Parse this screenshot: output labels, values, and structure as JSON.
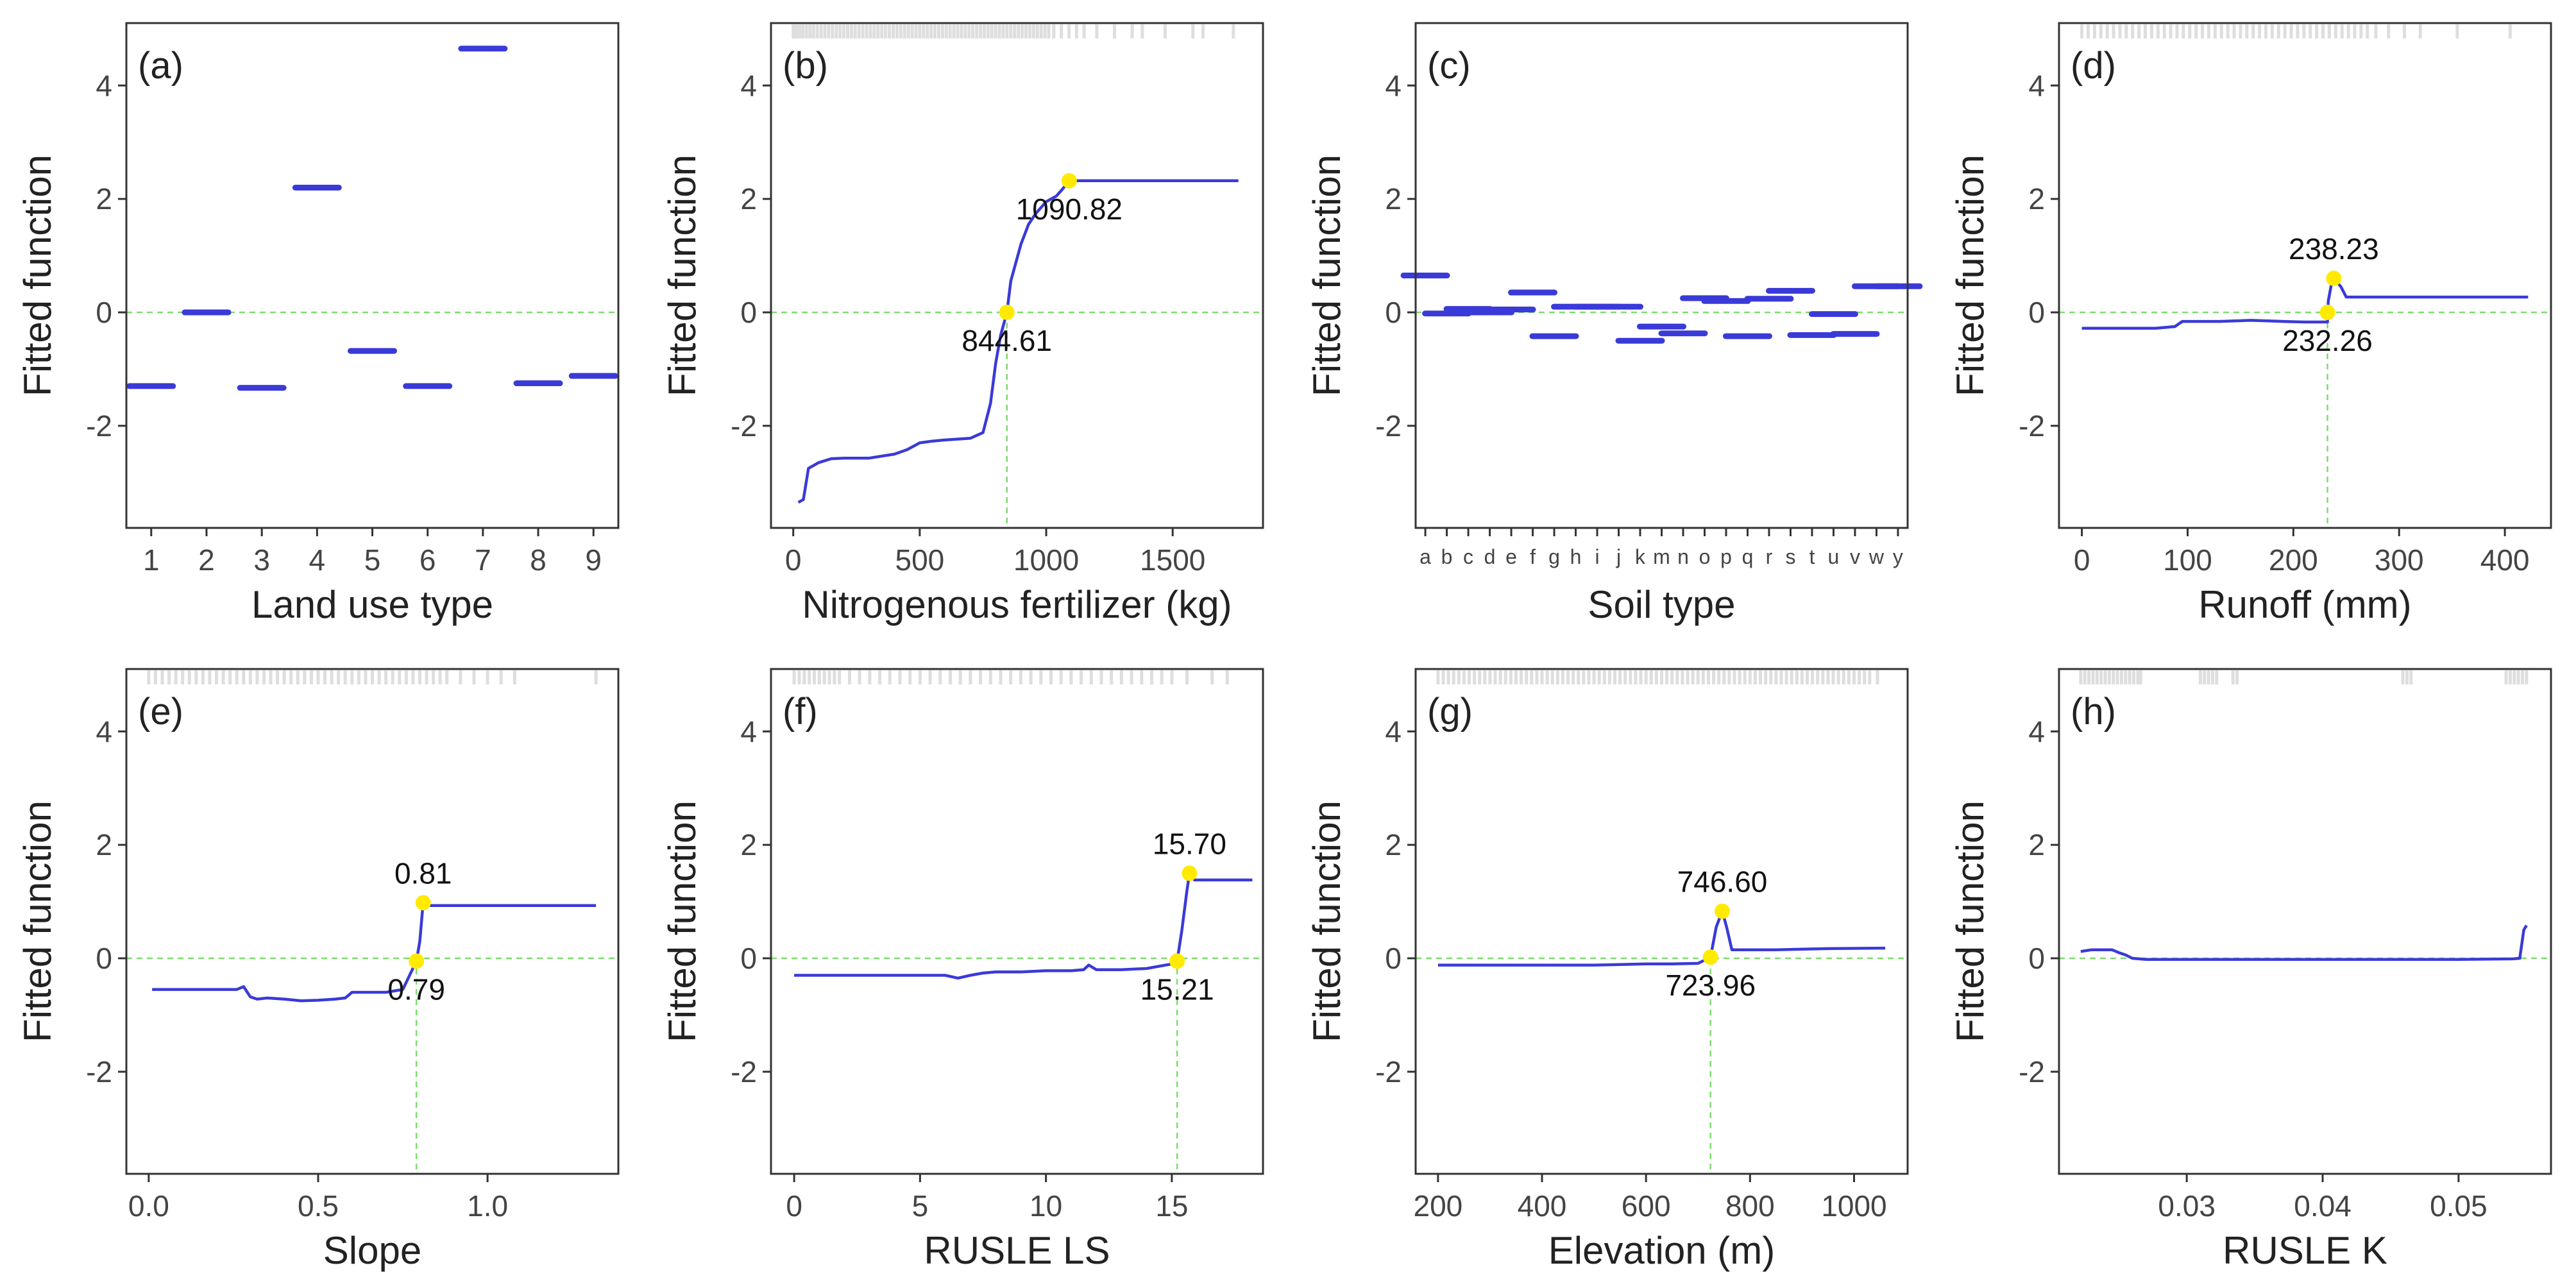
{
  "figure": {
    "ylabel": "Fitted function",
    "colors": {
      "line": "#3a3ad8",
      "highlight": "#ffea00",
      "guide": "#7ddc6e",
      "rug": "#dedede",
      "axis": "#333333",
      "text": "#222222"
    }
  },
  "chart_data": [
    {
      "panel": "(a)",
      "type": "step",
      "xlabel": "Land use type",
      "ylabel": "Fitted function",
      "x_scale": "categorical",
      "categories": [
        "1",
        "2",
        "3",
        "4",
        "5",
        "6",
        "7",
        "8",
        "9"
      ],
      "values": [
        -1.3,
        0.0,
        -1.33,
        2.2,
        -0.68,
        -1.3,
        4.65,
        -1.25,
        -1.12
      ],
      "xlim": [
        0.55,
        9.45
      ],
      "ylim": [
        -3.8,
        5.1
      ],
      "xticks": [
        1,
        2,
        3,
        4,
        5,
        6,
        7,
        8,
        9
      ],
      "xtick_labels": [
        "1",
        "2",
        "3",
        "4",
        "5",
        "6",
        "7",
        "8",
        "9"
      ],
      "yticks": [
        -2,
        0,
        2,
        4
      ],
      "ytick_labels": [
        "-2",
        "0",
        "2",
        "4"
      ],
      "hline": 0,
      "points": [],
      "rug": []
    },
    {
      "panel": "(b)",
      "type": "line",
      "xlabel": "Nitrogenous fertilizer (kg)",
      "ylabel": "Fitted function",
      "xlim": [
        -88,
        1857
      ],
      "ylim": [
        -3.8,
        5.1
      ],
      "xticks": [
        0,
        500,
        1000,
        1500
      ],
      "xtick_labels": [
        "0",
        "500",
        "1000",
        "1500"
      ],
      "yticks": [
        -2,
        0,
        2,
        4
      ],
      "ytick_labels": [
        "-2",
        "0",
        "2",
        "4"
      ],
      "x": [
        20,
        40,
        60,
        100,
        150,
        200,
        300,
        400,
        450,
        500,
        550,
        600,
        700,
        750,
        780,
        800,
        820,
        844.61,
        860,
        900,
        930,
        960,
        1000,
        1040,
        1060,
        1090.82,
        1200,
        1400,
        1500,
        1760
      ],
      "y": [
        -3.35,
        -3.3,
        -2.75,
        -2.65,
        -2.58,
        -2.57,
        -2.57,
        -2.5,
        -2.42,
        -2.3,
        -2.27,
        -2.25,
        -2.22,
        -2.12,
        -1.6,
        -0.9,
        -0.4,
        0,
        0.55,
        1.2,
        1.55,
        1.75,
        1.95,
        2.05,
        2.15,
        2.32,
        2.32,
        2.32,
        2.32,
        2.32
      ],
      "hline": 0,
      "points": [
        {
          "x": 1090.82,
          "y": 2.32,
          "label": "1090.82",
          "anchor": "below",
          "guide": false
        },
        {
          "x": 844.61,
          "y": 0,
          "label": "844.61",
          "anchor": "below",
          "guide": true
        }
      ],
      "rug": [
        0,
        12,
        25,
        38,
        52,
        66,
        80,
        95,
        110,
        125,
        140,
        155,
        170,
        185,
        200,
        215,
        230,
        245,
        260,
        275,
        290,
        305,
        320,
        335,
        350,
        365,
        380,
        395,
        410,
        425,
        440,
        455,
        470,
        485,
        500,
        515,
        530,
        545,
        560,
        575,
        590,
        605,
        620,
        635,
        650,
        665,
        680,
        695,
        710,
        725,
        740,
        755,
        770,
        785,
        800,
        815,
        830,
        845,
        860,
        875,
        890,
        905,
        920,
        935,
        950,
        965,
        980,
        995,
        1010,
        1030,
        1060,
        1090,
        1120,
        1150,
        1200,
        1270,
        1340,
        1380,
        1470,
        1580,
        1620,
        1740
      ]
    },
    {
      "panel": "(c)",
      "type": "step",
      "xlabel": "Soil type",
      "ylabel": "Fitted function",
      "x_scale": "categorical",
      "categories": [
        "a",
        "b",
        "c",
        "d",
        "e",
        "f",
        "g",
        "h",
        "i",
        "j",
        "k",
        "m",
        "n",
        "o",
        "p",
        "q",
        "r",
        "s",
        "t",
        "u",
        "v",
        "w",
        "y"
      ],
      "values": [
        0.65,
        -0.02,
        0.06,
        0.0,
        0.05,
        0.35,
        -0.42,
        0.1,
        0.1,
        0.1,
        -0.5,
        -0.25,
        -0.37,
        0.25,
        0.2,
        -0.42,
        0.24,
        0.38,
        -0.4,
        -0.03,
        -0.38,
        0.46,
        0.46
      ],
      "xlim": [
        0.55,
        23.45
      ],
      "ylim": [
        -3.8,
        5.1
      ],
      "xticks": [
        1,
        2,
        3,
        4,
        5,
        6,
        7,
        8,
        9,
        10,
        11,
        12,
        13,
        14,
        15,
        16,
        17,
        18,
        19,
        20,
        21,
        22,
        23
      ],
      "xtick_labels": [
        "a",
        "b",
        "c",
        "d",
        "e",
        "f",
        "g",
        "h",
        "i",
        "j",
        "k",
        "m",
        "n",
        "o",
        "p",
        "q",
        "r",
        "s",
        "t",
        "u",
        "v",
        "w",
        "y"
      ],
      "yticks": [
        -2,
        0,
        2,
        4
      ],
      "ytick_labels": [
        "-2",
        "0",
        "2",
        "4"
      ],
      "hline": 0,
      "points": [],
      "rug": []
    },
    {
      "panel": "(d)",
      "type": "line",
      "xlabel": "Runoff (mm)",
      "ylabel": "Fitted function",
      "xlim": [
        -21.6,
        443.6
      ],
      "ylim": [
        -3.8,
        5.1
      ],
      "xticks": [
        0,
        100,
        200,
        300,
        400
      ],
      "xtick_labels": [
        "0",
        "100",
        "200",
        "300",
        "400"
      ],
      "yticks": [
        -2,
        0,
        2,
        4
      ],
      "ytick_labels": [
        "-2",
        "0",
        "2",
        "4"
      ],
      "x": [
        0,
        40,
        70,
        88,
        95,
        130,
        160,
        190,
        210,
        225,
        232.26,
        233,
        236,
        238.23,
        245,
        250,
        260,
        300,
        350,
        422
      ],
      "y": [
        -0.28,
        -0.28,
        -0.28,
        -0.25,
        -0.16,
        -0.16,
        -0.14,
        -0.16,
        -0.17,
        -0.17,
        -0.17,
        0.2,
        0.5,
        0.6,
        0.45,
        0.27,
        0.27,
        0.27,
        0.27,
        0.27
      ],
      "hline": 0,
      "points": [
        {
          "x": 238.23,
          "y": 0.6,
          "label": "238.23",
          "anchor": "above",
          "guide": false
        },
        {
          "x": 232.26,
          "y": 0,
          "label": "232.26",
          "anchor": "below",
          "guide": true
        }
      ],
      "rug": [
        0,
        6,
        12,
        18,
        24,
        30,
        36,
        42,
        48,
        54,
        60,
        66,
        72,
        78,
        84,
        90,
        96,
        102,
        108,
        114,
        120,
        126,
        132,
        138,
        144,
        150,
        156,
        162,
        168,
        174,
        180,
        186,
        192,
        198,
        204,
        210,
        216,
        222,
        228,
        234,
        240,
        246,
        252,
        258,
        264,
        270,
        278,
        290,
        305,
        320,
        355,
        405
      ]
    },
    {
      "panel": "(e)",
      "type": "line",
      "xlabel": "Slope",
      "ylabel": "Fitted function",
      "xlim": [
        -0.066,
        1.386
      ],
      "ylim": [
        -3.8,
        5.1
      ],
      "xticks": [
        0,
        0.5,
        1.0
      ],
      "xtick_labels": [
        "0.0",
        "0.5",
        "1.0"
      ],
      "yticks": [
        -2,
        0,
        2,
        4
      ],
      "ytick_labels": [
        "-2",
        "0",
        "2",
        "4"
      ],
      "x": [
        0.01,
        0.15,
        0.26,
        0.28,
        0.3,
        0.32,
        0.35,
        0.4,
        0.45,
        0.5,
        0.55,
        0.58,
        0.6,
        0.7,
        0.75,
        0.79,
        0.8,
        0.81,
        0.83,
        1.32
      ],
      "y": [
        -0.55,
        -0.55,
        -0.55,
        -0.5,
        -0.68,
        -0.72,
        -0.7,
        -0.72,
        -0.75,
        -0.74,
        -0.72,
        -0.7,
        -0.6,
        -0.6,
        -0.55,
        -0.05,
        0.3,
        0.98,
        0.93,
        0.93
      ],
      "hline": 0,
      "points": [
        {
          "x": 0.81,
          "y": 0.98,
          "label": "0.81",
          "anchor": "above",
          "guide": false
        },
        {
          "x": 0.79,
          "y": -0.05,
          "label": "0.79",
          "anchor": "below",
          "guide": true
        }
      ],
      "rug": [
        0.0,
        0.02,
        0.04,
        0.06,
        0.08,
        0.1,
        0.12,
        0.14,
        0.16,
        0.18,
        0.2,
        0.22,
        0.24,
        0.26,
        0.28,
        0.3,
        0.32,
        0.34,
        0.36,
        0.38,
        0.4,
        0.42,
        0.44,
        0.46,
        0.48,
        0.5,
        0.52,
        0.54,
        0.56,
        0.58,
        0.6,
        0.62,
        0.64,
        0.66,
        0.68,
        0.7,
        0.72,
        0.74,
        0.76,
        0.78,
        0.8,
        0.82,
        0.84,
        0.86,
        0.88,
        0.92,
        0.96,
        1.0,
        1.04,
        1.08,
        1.32
      ]
    },
    {
      "panel": "(f)",
      "type": "line",
      "xlabel": "RUSLE LS",
      "ylabel": "Fitted function",
      "xlim": [
        -0.92,
        18.62
      ],
      "ylim": [
        -3.8,
        5.1
      ],
      "xticks": [
        0,
        5,
        10,
        15
      ],
      "xtick_labels": [
        "0",
        "5",
        "10",
        "15"
      ],
      "yticks": [
        -2,
        0,
        2,
        4
      ],
      "ytick_labels": [
        "-2",
        "0",
        "2",
        "4"
      ],
      "x": [
        0,
        3,
        6,
        6.5,
        7,
        7.5,
        8,
        9,
        10,
        11,
        11.5,
        11.7,
        12,
        13,
        14,
        15,
        15.21,
        15.4,
        15.6,
        15.7,
        15.9,
        18.2
      ],
      "y": [
        -0.3,
        -0.3,
        -0.3,
        -0.35,
        -0.3,
        -0.26,
        -0.24,
        -0.24,
        -0.22,
        -0.22,
        -0.2,
        -0.12,
        -0.2,
        -0.2,
        -0.18,
        -0.1,
        -0.05,
        0.5,
        1.2,
        1.5,
        1.38,
        1.38
      ],
      "hline": 0,
      "points": [
        {
          "x": 15.7,
          "y": 1.5,
          "label": "15.70",
          "anchor": "above",
          "guide": false
        },
        {
          "x": 15.21,
          "y": -0.05,
          "label": "15.21",
          "anchor": "below",
          "guide": true
        }
      ],
      "rug": [
        0,
        0.2,
        0.4,
        0.6,
        0.8,
        1.0,
        1.2,
        1.4,
        1.6,
        1.8,
        2.2,
        2.6,
        3.0,
        3.4,
        3.8,
        4.2,
        4.6,
        5.0,
        5.4,
        5.8,
        6.2,
        6.6,
        7.0,
        7.4,
        7.8,
        8.2,
        8.6,
        9.0,
        9.4,
        9.8,
        10.2,
        10.6,
        11.0,
        11.4,
        11.8,
        12.2,
        12.6,
        13.0,
        13.4,
        13.8,
        14.2,
        14.6,
        15.0,
        15.6,
        16.6,
        17.2
      ]
    },
    {
      "panel": "(g)",
      "type": "line",
      "xlabel": "Elevation (m)",
      "ylabel": "Fitted function",
      "xlim": [
        157,
        1103
      ],
      "ylim": [
        -3.8,
        5.1
      ],
      "xticks": [
        200,
        400,
        600,
        800,
        1000
      ],
      "xtick_labels": [
        "200",
        "400",
        "600",
        "800",
        "1000"
      ],
      "yticks": [
        -2,
        0,
        2,
        4
      ],
      "ytick_labels": [
        "-2",
        "0",
        "2",
        "4"
      ],
      "x": [
        200,
        300,
        400,
        500,
        600,
        650,
        700,
        723.96,
        735,
        746.6,
        755,
        765,
        780,
        850,
        950,
        1060
      ],
      "y": [
        -0.12,
        -0.12,
        -0.12,
        -0.12,
        -0.1,
        -0.1,
        -0.09,
        0.02,
        0.55,
        0.83,
        0.55,
        0.15,
        0.15,
        0.15,
        0.17,
        0.18
      ],
      "hline": 0,
      "points": [
        {
          "x": 746.6,
          "y": 0.83,
          "label": "746.60",
          "anchor": "above",
          "guide": false
        },
        {
          "x": 723.96,
          "y": 0.02,
          "label": "723.96",
          "anchor": "below",
          "guide": true
        }
      ],
      "rug": [
        200,
        210,
        220,
        230,
        240,
        250,
        260,
        270,
        280,
        290,
        300,
        310,
        320,
        330,
        340,
        350,
        360,
        370,
        380,
        390,
        400,
        410,
        420,
        430,
        440,
        450,
        460,
        470,
        480,
        490,
        500,
        510,
        520,
        530,
        540,
        550,
        560,
        570,
        580,
        590,
        600,
        610,
        620,
        630,
        640,
        650,
        660,
        670,
        680,
        690,
        700,
        710,
        720,
        730,
        740,
        750,
        760,
        770,
        780,
        790,
        800,
        810,
        820,
        830,
        840,
        850,
        860,
        870,
        880,
        890,
        900,
        910,
        920,
        930,
        940,
        950,
        960,
        970,
        980,
        990,
        1000,
        1010,
        1020,
        1030,
        1045
      ]
    },
    {
      "panel": "(h)",
      "type": "line",
      "xlabel": "RUSLE K",
      "ylabel": "Fitted function",
      "xlim": [
        0.0206,
        0.0568
      ],
      "ylim": [
        -3.8,
        5.1
      ],
      "xticks": [
        0.03,
        0.04,
        0.05
      ],
      "xtick_labels": [
        "0.03",
        "0.04",
        "0.05"
      ],
      "yticks": [
        -2,
        0,
        2,
        4
      ],
      "ytick_labels": [
        "-2",
        "0",
        "2",
        "4"
      ],
      "x": [
        0.0222,
        0.023,
        0.0245,
        0.025,
        0.0255,
        0.026,
        0.027,
        0.035,
        0.045,
        0.05,
        0.054,
        0.0545,
        0.0548,
        0.055
      ],
      "y": [
        0.12,
        0.15,
        0.15,
        0.1,
        0.06,
        0.0,
        -0.02,
        -0.02,
        -0.02,
        -0.02,
        -0.01,
        0.0,
        0.5,
        0.58
      ],
      "hline": 0,
      "points": [],
      "rug": [
        0.0222,
        0.0225,
        0.0228,
        0.0231,
        0.0234,
        0.0237,
        0.024,
        0.0243,
        0.0246,
        0.0249,
        0.0252,
        0.0255,
        0.0258,
        0.0261,
        0.0264,
        0.0266,
        0.031,
        0.0313,
        0.0316,
        0.0319,
        0.0322,
        0.0334,
        0.0337,
        0.0459,
        0.0462,
        0.0465,
        0.0535,
        0.0538,
        0.0541,
        0.0544,
        0.0547,
        0.055
      ]
    }
  ]
}
